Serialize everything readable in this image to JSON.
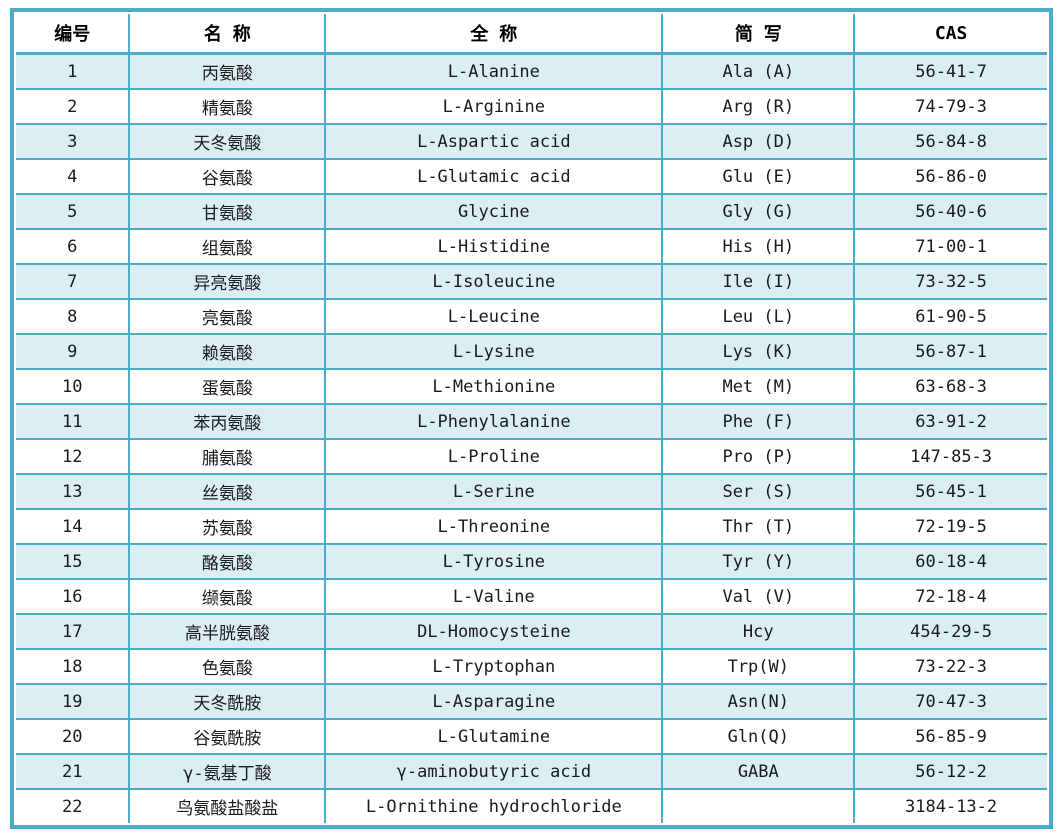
{
  "colors": {
    "border": "#4BACC6",
    "row_shaded": "#DAEEF3",
    "row_plain": "#FFFFFF",
    "header_text": "#000000",
    "body_text": "#1A1A1A"
  },
  "table": {
    "headers": [
      "编号",
      "名 称",
      "全 称",
      "简 写",
      "CAS"
    ],
    "rows": [
      [
        "1",
        "丙氨酸",
        "L-Alanine",
        "Ala (A)",
        "56-41-7"
      ],
      [
        "2",
        "精氨酸",
        "L-Arginine",
        "Arg (R)",
        "74-79-3"
      ],
      [
        "3",
        "天冬氨酸",
        "L-Aspartic acid",
        "Asp (D)",
        "56-84-8"
      ],
      [
        "4",
        "谷氨酸",
        "L-Glutamic acid",
        "Glu (E)",
        "56-86-0"
      ],
      [
        "5",
        "甘氨酸",
        "Glycine",
        "Gly (G)",
        "56-40-6"
      ],
      [
        "6",
        "组氨酸",
        "L-Histidine",
        "His (H)",
        "71-00-1"
      ],
      [
        "7",
        "异亮氨酸",
        "L-Isoleucine",
        "Ile (I)",
        "73-32-5"
      ],
      [
        "8",
        "亮氨酸",
        "L-Leucine",
        "Leu (L)",
        "61-90-5"
      ],
      [
        "9",
        "赖氨酸",
        "L-Lysine",
        "Lys (K)",
        "56-87-1"
      ],
      [
        "10",
        "蛋氨酸",
        "L-Methionine",
        "Met (M)",
        "63-68-3"
      ],
      [
        "11",
        "苯丙氨酸",
        "L-Phenylalanine",
        "Phe (F)",
        "63-91-2"
      ],
      [
        "12",
        "脯氨酸",
        "L-Proline",
        "Pro (P)",
        "147-85-3"
      ],
      [
        "13",
        "丝氨酸",
        "L-Serine",
        "Ser (S)",
        "56-45-1"
      ],
      [
        "14",
        "苏氨酸",
        "L-Threonine",
        "Thr (T)",
        "72-19-5"
      ],
      [
        "15",
        "酪氨酸",
        "L-Tyrosine",
        "Tyr (Y)",
        "60-18-4"
      ],
      [
        "16",
        "缬氨酸",
        "L-Valine",
        "Val (V)",
        "72-18-4"
      ],
      [
        "17",
        "高半胱氨酸",
        "DL-Homocysteine",
        "Hcy",
        "454-29-5"
      ],
      [
        "18",
        "色氨酸",
        "L-Tryptophan",
        "Trp(W)",
        "73-22-3"
      ],
      [
        "19",
        "天冬酰胺",
        "L-Asparagine",
        "Asn(N)",
        "70-47-3"
      ],
      [
        "20",
        "谷氨酰胺",
        "L-Glutamine",
        "Gln(Q)",
        "56-85-9"
      ],
      [
        "21",
        "γ-氨基丁酸",
        "γ-aminobutyric acid",
        "GABA",
        "56-12-2"
      ],
      [
        "22",
        "鸟氨酸盐酸盐",
        "L-Ornithine hydrochloride",
        "",
        "3184-13-2"
      ]
    ]
  }
}
